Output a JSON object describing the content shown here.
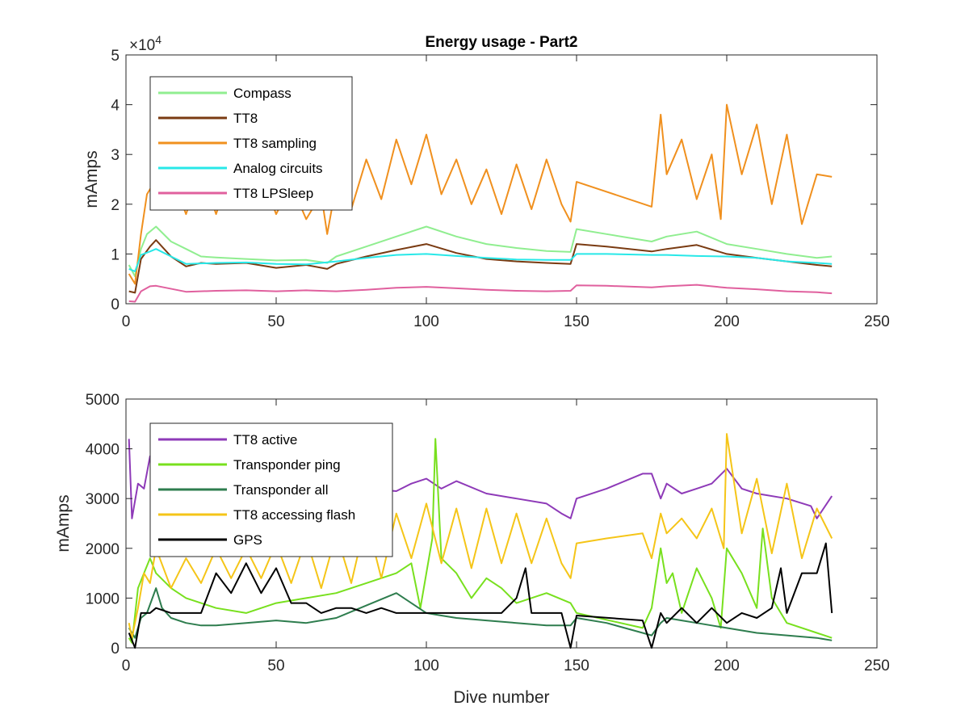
{
  "chart_data": [
    {
      "type": "line",
      "title": "Energy usage - Part2",
      "xlabel": "",
      "ylabel": "mAmps",
      "xlim": [
        0,
        250
      ],
      "ylim": [
        0,
        50000
      ],
      "xticks": [
        0,
        50,
        100,
        150,
        200,
        250
      ],
      "yticks": [
        0,
        10000,
        20000,
        30000,
        40000,
        50000
      ],
      "ytick_labels": [
        "0",
        "1",
        "2",
        "3",
        "4",
        "5"
      ],
      "y_exponent_label": "×10",
      "y_exponent_power": "4",
      "legend_position": "top-left",
      "series": [
        {
          "name": "Compass",
          "color": "#90ee90",
          "x": [
            1,
            3,
            5,
            7,
            10,
            15,
            20,
            25,
            30,
            40,
            50,
            60,
            67,
            70,
            80,
            90,
            100,
            110,
            120,
            130,
            140,
            148,
            150,
            160,
            175,
            180,
            190,
            200,
            210,
            220,
            230,
            235
          ],
          "y": [
            7800,
            5500,
            11000,
            14000,
            15500,
            12500,
            11000,
            9500,
            9300,
            9000,
            8700,
            8800,
            8200,
            9500,
            11500,
            13500,
            15500,
            13500,
            12000,
            11200,
            10600,
            10400,
            15000,
            14000,
            12500,
            13500,
            14500,
            12000,
            11000,
            10000,
            9200,
            9500
          ]
        },
        {
          "name": "TT8",
          "color": "#7a3b12",
          "x": [
            1,
            3,
            5,
            8,
            10,
            15,
            20,
            25,
            30,
            40,
            50,
            60,
            67,
            70,
            80,
            90,
            100,
            110,
            120,
            130,
            140,
            148,
            150,
            160,
            175,
            180,
            190,
            200,
            210,
            220,
            230,
            235
          ],
          "y": [
            2500,
            2200,
            9000,
            11500,
            12800,
            9500,
            7500,
            8200,
            8000,
            8200,
            7200,
            7800,
            7000,
            8000,
            9500,
            10800,
            12000,
            10200,
            9000,
            8500,
            8200,
            8000,
            12000,
            11500,
            10500,
            11000,
            11800,
            10000,
            9200,
            8500,
            7800,
            7500
          ]
        },
        {
          "name": "TT8 sampling",
          "color": "#f0901e",
          "x": [
            1,
            3,
            5,
            7,
            10,
            12,
            15,
            20,
            25,
            30,
            35,
            40,
            45,
            50,
            55,
            60,
            65,
            67,
            70,
            75,
            80,
            85,
            90,
            95,
            100,
            105,
            110,
            115,
            120,
            125,
            130,
            135,
            140,
            145,
            148,
            150,
            175,
            178,
            180,
            185,
            190,
            195,
            198,
            200,
            205,
            210,
            215,
            220,
            225,
            230,
            235
          ],
          "y": [
            6000,
            4000,
            14000,
            22000,
            25000,
            20000,
            26000,
            18000,
            27000,
            18000,
            27000,
            19000,
            26000,
            18000,
            24000,
            17000,
            22000,
            14000,
            24000,
            19000,
            29000,
            21000,
            33000,
            24000,
            34000,
            22000,
            29000,
            20000,
            27000,
            18000,
            28000,
            19000,
            29000,
            20000,
            16500,
            24500,
            19500,
            38000,
            26000,
            33000,
            21000,
            30000,
            17000,
            40000,
            26000,
            36000,
            20000,
            34000,
            16000,
            26000,
            25500
          ]
        },
        {
          "name": "Analog circuits",
          "color": "#28e8e8",
          "x": [
            1,
            3,
            5,
            8,
            10,
            15,
            20,
            30,
            40,
            50,
            60,
            70,
            80,
            90,
            100,
            110,
            120,
            130,
            140,
            148,
            150,
            160,
            175,
            180,
            190,
            200,
            210,
            220,
            230,
            235
          ],
          "y": [
            7000,
            6500,
            9800,
            10500,
            11000,
            9500,
            8000,
            8200,
            8300,
            8000,
            7900,
            8500,
            9200,
            9800,
            10000,
            9600,
            9200,
            8900,
            8800,
            8800,
            10000,
            10000,
            9800,
            9800,
            9600,
            9500,
            9200,
            8500,
            8200,
            8000
          ]
        },
        {
          "name": "TT8 LPSleep",
          "color": "#e0609e",
          "x": [
            1,
            3,
            5,
            8,
            10,
            20,
            30,
            40,
            50,
            60,
            70,
            80,
            90,
            100,
            110,
            120,
            130,
            140,
            148,
            150,
            160,
            175,
            180,
            190,
            200,
            210,
            220,
            230,
            235
          ],
          "y": [
            500,
            400,
            2500,
            3500,
            3600,
            2400,
            2600,
            2700,
            2500,
            2700,
            2500,
            2800,
            3200,
            3400,
            3100,
            2800,
            2600,
            2500,
            2600,
            3700,
            3600,
            3300,
            3500,
            3800,
            3200,
            2900,
            2500,
            2300,
            2100
          ]
        }
      ]
    },
    {
      "type": "line",
      "title": "",
      "xlabel": "Dive number",
      "ylabel": "mAmps",
      "xlim": [
        0,
        250
      ],
      "ylim": [
        0,
        5000
      ],
      "xticks": [
        0,
        50,
        100,
        150,
        200,
        250
      ],
      "yticks": [
        0,
        1000,
        2000,
        3000,
        4000,
        5000
      ],
      "ytick_labels": [
        "0",
        "1000",
        "2000",
        "3000",
        "4000",
        "5000"
      ],
      "legend_position": "top-left",
      "series": [
        {
          "name": "TT8 active",
          "color": "#8e3ab8",
          "x": [
            1,
            2,
            4,
            6,
            8,
            10,
            15,
            20,
            30,
            40,
            50,
            60,
            70,
            80,
            90,
            95,
            100,
            105,
            110,
            120,
            130,
            140,
            145,
            148,
            150,
            160,
            172,
            175,
            178,
            180,
            185,
            190,
            195,
            200,
            205,
            210,
            220,
            228,
            230,
            235
          ],
          "y": [
            4200,
            2600,
            3300,
            3200,
            3850,
            3600,
            3400,
            3600,
            3500,
            3500,
            3300,
            3200,
            3100,
            3200,
            3150,
            3300,
            3400,
            3200,
            3350,
            3100,
            3000,
            2900,
            2700,
            2600,
            3000,
            3200,
            3500,
            3500,
            3000,
            3300,
            3100,
            3200,
            3300,
            3600,
            3200,
            3100,
            3000,
            2850,
            2600,
            3050
          ]
        },
        {
          "name": "Transponder ping",
          "color": "#78e01e",
          "x": [
            1,
            2,
            4,
            6,
            8,
            10,
            15,
            20,
            25,
            30,
            40,
            50,
            60,
            70,
            80,
            90,
            95,
            98,
            100,
            102,
            103,
            105,
            110,
            115,
            120,
            125,
            130,
            140,
            148,
            150,
            172,
            175,
            178,
            180,
            182,
            185,
            190,
            195,
            198,
            200,
            205,
            210,
            212,
            215,
            220,
            230,
            235
          ],
          "y": [
            200,
            100,
            1200,
            1500,
            1800,
            1500,
            1200,
            1000,
            900,
            800,
            700,
            900,
            1000,
            1100,
            1300,
            1500,
            1700,
            800,
            1500,
            2200,
            4200,
            1800,
            1500,
            1000,
            1400,
            1200,
            900,
            1100,
            900,
            700,
            400,
            800,
            2000,
            1300,
            1500,
            700,
            1600,
            1000,
            400,
            2000,
            1500,
            800,
            2400,
            1000,
            500,
            300,
            200
          ]
        },
        {
          "name": "Transponder all",
          "color": "#2e7d4e",
          "x": [
            1,
            3,
            5,
            7,
            10,
            12,
            15,
            20,
            25,
            30,
            40,
            50,
            60,
            70,
            80,
            90,
            95,
            100,
            105,
            110,
            120,
            130,
            140,
            148,
            150,
            160,
            172,
            175,
            178,
            180,
            185,
            190,
            195,
            200,
            210,
            220,
            230,
            235
          ],
          "y": [
            400,
            200,
            600,
            700,
            1200,
            800,
            600,
            500,
            450,
            450,
            500,
            550,
            500,
            600,
            850,
            1100,
            900,
            700,
            650,
            600,
            550,
            500,
            450,
            450,
            600,
            500,
            300,
            250,
            500,
            600,
            550,
            500,
            450,
            400,
            300,
            250,
            200,
            150
          ]
        },
        {
          "name": "TT8 accessing flash",
          "color": "#f5c518",
          "x": [
            1,
            2,
            4,
            6,
            8,
            10,
            15,
            20,
            25,
            30,
            35,
            40,
            45,
            50,
            55,
            60,
            65,
            70,
            75,
            80,
            85,
            90,
            95,
            100,
            105,
            110,
            115,
            120,
            125,
            130,
            135,
            140,
            145,
            148,
            150,
            160,
            172,
            175,
            178,
            180,
            185,
            190,
            195,
            199,
            200,
            205,
            210,
            215,
            220,
            225,
            230,
            235
          ],
          "y": [
            500,
            200,
            800,
            1500,
            1300,
            2000,
            1200,
            1800,
            1300,
            2000,
            1400,
            2000,
            1400,
            2100,
            1300,
            2200,
            1200,
            2300,
            1300,
            2600,
            1400,
            2700,
            1800,
            2900,
            1700,
            2800,
            1600,
            2800,
            1700,
            2700,
            1700,
            2600,
            1700,
            1400,
            2100,
            2200,
            2300,
            1800,
            2700,
            2300,
            2600,
            2200,
            2800,
            2000,
            4300,
            2300,
            3400,
            1900,
            3300,
            1800,
            2800,
            2200
          ]
        },
        {
          "name": "GPS",
          "color": "#000000",
          "x": [
            1,
            3,
            5,
            8,
            10,
            15,
            20,
            25,
            30,
            35,
            40,
            45,
            50,
            55,
            60,
            65,
            70,
            75,
            80,
            85,
            90,
            95,
            100,
            105,
            110,
            115,
            120,
            125,
            130,
            133,
            135,
            140,
            145,
            148,
            150,
            172,
            175,
            178,
            180,
            185,
            190,
            195,
            200,
            205,
            210,
            215,
            218,
            220,
            225,
            230,
            233,
            235
          ],
          "y": [
            300,
            0,
            700,
            700,
            800,
            700,
            700,
            700,
            1500,
            1100,
            1700,
            1100,
            1600,
            900,
            900,
            700,
            800,
            800,
            700,
            800,
            700,
            700,
            700,
            700,
            700,
            700,
            700,
            700,
            1000,
            1600,
            700,
            700,
            700,
            0,
            650,
            550,
            0,
            700,
            500,
            800,
            500,
            800,
            500,
            700,
            600,
            800,
            1600,
            700,
            1500,
            1500,
            2100,
            700
          ]
        }
      ]
    }
  ]
}
